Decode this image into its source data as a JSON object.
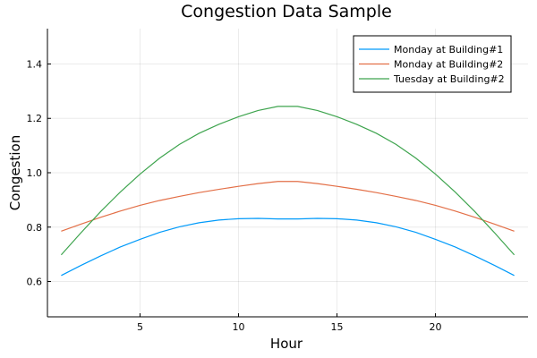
{
  "chart_data": {
    "type": "line",
    "title": "Congestion Data Sample",
    "xlabel": "Hour",
    "ylabel": "Congestion",
    "xlim": [
      0.3,
      24.7
    ],
    "ylim": [
      0.47,
      1.53
    ],
    "xticks": [
      5,
      10,
      15,
      20
    ],
    "yticks": [
      0.6,
      0.8,
      1.0,
      1.2,
      1.4
    ],
    "xtick_labels": [
      "5",
      "10",
      "15",
      "20"
    ],
    "ytick_labels": [
      "0.6",
      "0.8",
      "1.0",
      "1.2",
      "1.4"
    ],
    "grid": true,
    "legend_position": "top-right",
    "x": [
      1,
      2,
      3,
      4,
      5,
      6,
      7,
      8,
      9,
      10,
      11,
      12,
      13,
      14,
      15,
      16,
      17,
      18,
      19,
      20,
      21,
      22,
      23,
      24
    ],
    "series": [
      {
        "name": "Monday at Building#1",
        "color": "#009AFA",
        "values": [
          0.622,
          0.659,
          0.694,
          0.727,
          0.755,
          0.781,
          0.801,
          0.816,
          0.826,
          0.831,
          0.832,
          0.83,
          0.83,
          0.832,
          0.831,
          0.826,
          0.816,
          0.801,
          0.781,
          0.755,
          0.727,
          0.694,
          0.659,
          0.622
        ]
      },
      {
        "name": "Monday at Building#2",
        "color": "#E36F47",
        "values": [
          0.785,
          0.811,
          0.836,
          0.859,
          0.88,
          0.898,
          0.913,
          0.927,
          0.939,
          0.95,
          0.96,
          0.968,
          0.968,
          0.96,
          0.95,
          0.939,
          0.927,
          0.913,
          0.898,
          0.88,
          0.859,
          0.836,
          0.811,
          0.785
        ]
      },
      {
        "name": "Tuesday at Building#2",
        "color": "#3EA44E",
        "values": [
          0.698,
          0.779,
          0.857,
          0.929,
          0.995,
          1.054,
          1.104,
          1.145,
          1.178,
          1.206,
          1.229,
          1.244,
          1.244,
          1.229,
          1.206,
          1.178,
          1.145,
          1.104,
          1.054,
          0.995,
          0.929,
          0.857,
          0.779,
          0.698
        ]
      }
    ]
  }
}
